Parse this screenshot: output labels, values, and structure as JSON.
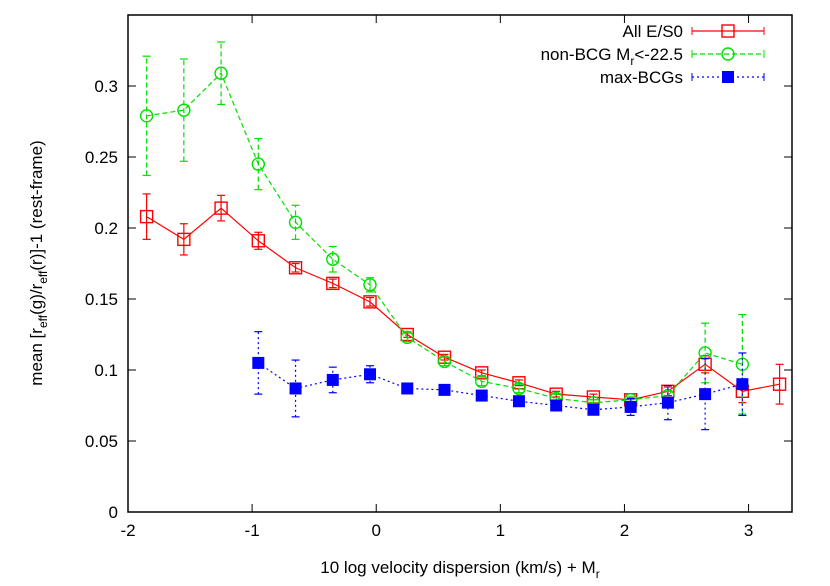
{
  "chart_data": {
    "type": "line",
    "title": "",
    "xlabel": "10 log velocity dispersion (km/s) + M",
    "xlabel_sub": "r",
    "ylabel": "mean [r_eff(g)/r_eff(r)]-1 (rest-frame)",
    "ylabel_parts": [
      "mean [r",
      "eff",
      "(g)/r",
      "eff",
      "(r)]-1 (rest-frame)"
    ],
    "xlim": [
      -2,
      3.35
    ],
    "ylim": [
      0,
      0.35
    ],
    "xticks": [
      -2,
      -1,
      0,
      1,
      2,
      3
    ],
    "xtick_labels": [
      "-2",
      "-1",
      "0",
      "1",
      "2",
      "3"
    ],
    "yticks": [
      0,
      0.05,
      0.1,
      0.15,
      0.2,
      0.25,
      0.3
    ],
    "ytick_labels": [
      "0",
      "0.05",
      "0.1",
      "0.15",
      "0.2",
      "0.25",
      "0.3"
    ],
    "grid": false,
    "legend_position": "top-right",
    "series": [
      {
        "name": "All E/S0",
        "legend_parts": [
          "All E/S0",
          "",
          ""
        ],
        "color": "#ff0000",
        "marker": "open-square",
        "line": "solid",
        "x": [
          -1.85,
          -1.55,
          -1.25,
          -0.95,
          -0.65,
          -0.35,
          -0.05,
          0.25,
          0.55,
          0.85,
          1.15,
          1.45,
          1.75,
          2.05,
          2.35,
          2.65,
          2.95,
          3.25
        ],
        "y": [
          0.208,
          0.192,
          0.214,
          0.191,
          0.172,
          0.161,
          0.148,
          0.125,
          0.109,
          0.098,
          0.091,
          0.083,
          0.081,
          0.079,
          0.085,
          0.104,
          0.085,
          0.09
        ],
        "err": [
          0.016,
          0.011,
          0.009,
          0.006,
          0.003,
          0.003,
          0.003,
          0.002,
          0.002,
          0.002,
          0.002,
          0.002,
          0.002,
          0.002,
          0.003,
          0.006,
          0.008,
          0.014
        ]
      },
      {
        "name": "non-BCG M_r<-22.5",
        "legend_parts": [
          "non-BCG M",
          "r",
          "<-22.5"
        ],
        "color": "#00e000",
        "marker": "open-circle",
        "line": "dashed",
        "x": [
          -1.85,
          -1.55,
          -1.25,
          -0.95,
          -0.65,
          -0.35,
          -0.05,
          0.25,
          0.55,
          0.85,
          1.15,
          1.45,
          1.75,
          2.05,
          2.35,
          2.65,
          2.95
        ],
        "y": [
          0.279,
          0.283,
          0.309,
          0.245,
          0.204,
          0.178,
          0.16,
          0.123,
          0.106,
          0.092,
          0.087,
          0.08,
          0.077,
          0.079,
          0.082,
          0.112,
          0.104
        ],
        "err": [
          0.042,
          0.036,
          0.022,
          0.018,
          0.012,
          0.009,
          0.005,
          0.003,
          0.003,
          0.003,
          0.003,
          0.003,
          0.002,
          0.002,
          0.003,
          0.021,
          0.035
        ]
      },
      {
        "name": "max-BCGs",
        "legend_parts": [
          "max-BCGs",
          "",
          ""
        ],
        "color": "#0000ff",
        "marker": "filled-square",
        "line": "dotted",
        "x": [
          -0.95,
          -0.65,
          -0.35,
          -0.05,
          0.25,
          0.55,
          0.85,
          1.15,
          1.45,
          1.75,
          2.05,
          2.35,
          2.65,
          2.95
        ],
        "y": [
          0.105,
          0.087,
          0.093,
          0.097,
          0.087,
          0.086,
          0.082,
          0.078,
          0.075,
          0.072,
          0.074,
          0.077,
          0.083,
          0.09
        ],
        "err": [
          0.022,
          0.02,
          0.009,
          0.006,
          0.002,
          0.002,
          0.002,
          0.002,
          0.002,
          0.002,
          0.006,
          0.012,
          0.025,
          0.022
        ]
      }
    ]
  }
}
